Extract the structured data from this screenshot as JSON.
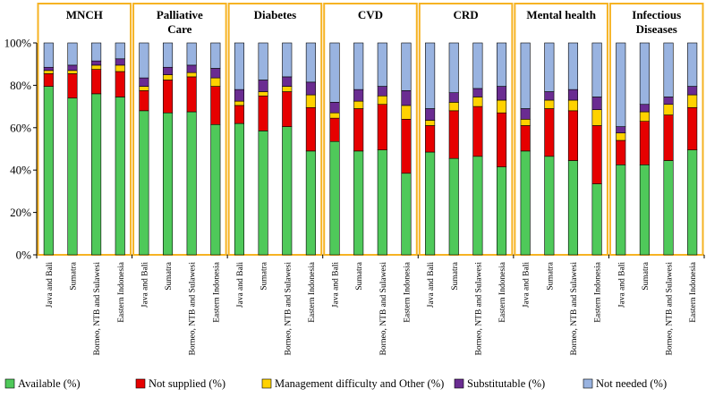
{
  "chart_data": {
    "type": "stacked-bar",
    "ylabel": "",
    "ylim": [
      0,
      100
    ],
    "yticks": [
      "0%",
      "20%",
      "40%",
      "60%",
      "80%",
      "100%"
    ],
    "categories": [
      "Java and Bali",
      "Sumatra",
      "Borneo, NTB and Sulawesi",
      "Eastern Indonesia"
    ],
    "series": [
      {
        "name": "Available (%)",
        "color": "#4fc95a"
      },
      {
        "name": "Not supplied (%)",
        "color": "#e60000"
      },
      {
        "name": "Management difficulty and Other (%)",
        "color": "#ffd200"
      },
      {
        "name": "Substitutable (%)",
        "color": "#6a2c91"
      },
      {
        "name": "Not needed (%)",
        "color": "#99b3e0"
      }
    ],
    "groups": [
      {
        "title": "MNCH",
        "values": [
          [
            79.5,
            6,
            1.5,
            1.5,
            11.5
          ],
          [
            74,
            11.5,
            1.5,
            2.5,
            10.5
          ],
          [
            76,
            11.5,
            2,
            2,
            8.5
          ],
          [
            74.5,
            12,
            3,
            3,
            7.5
          ]
        ]
      },
      {
        "title": "Palliative Care",
        "values": [
          [
            68,
            9.5,
            2,
            4,
            16.5
          ],
          [
            67,
            15.5,
            2.5,
            3.5,
            11.5
          ],
          [
            67.5,
            16.5,
            2,
            3.5,
            10.5
          ],
          [
            61.5,
            18,
            4,
            4.5,
            12
          ]
        ]
      },
      {
        "title": "Diabetes",
        "values": [
          [
            62,
            8.5,
            2,
            5.5,
            22
          ],
          [
            58.5,
            16.5,
            2,
            5.5,
            17.5
          ],
          [
            60.5,
            16.5,
            2.5,
            4.5,
            16
          ],
          [
            49,
            20.5,
            6,
            6,
            18.5
          ]
        ]
      },
      {
        "title": "CVD",
        "values": [
          [
            53.5,
            11,
            2.5,
            5,
            28
          ],
          [
            49,
            20,
            3.5,
            5.5,
            22
          ],
          [
            49.5,
            21.5,
            4,
            4.5,
            20.5
          ],
          [
            38.5,
            25.5,
            6.5,
            7,
            22.5
          ]
        ]
      },
      {
        "title": "CRD",
        "values": [
          [
            48.5,
            12.5,
            2.5,
            5.5,
            31
          ],
          [
            45.5,
            22.5,
            4,
            4.5,
            23.5
          ],
          [
            46.5,
            23.5,
            4.5,
            4,
            21.5
          ],
          [
            41.5,
            25.5,
            6,
            6.5,
            20.5
          ]
        ]
      },
      {
        "title": "Mental health",
        "values": [
          [
            49,
            12,
            3,
            5,
            31
          ],
          [
            46.5,
            22.5,
            4,
            4,
            23
          ],
          [
            44.5,
            23.5,
            5,
            5,
            22
          ],
          [
            33.5,
            27.5,
            7.5,
            6,
            25.5
          ]
        ]
      },
      {
        "title": "Infectious Diseases",
        "values": [
          [
            42.5,
            11.5,
            3.5,
            3,
            39.5
          ],
          [
            42.5,
            20.5,
            4.5,
            3.5,
            29
          ],
          [
            44.5,
            21.5,
            5,
            3.5,
            25.5
          ],
          [
            49.5,
            20,
            6,
            4,
            20.5
          ]
        ]
      }
    ]
  }
}
